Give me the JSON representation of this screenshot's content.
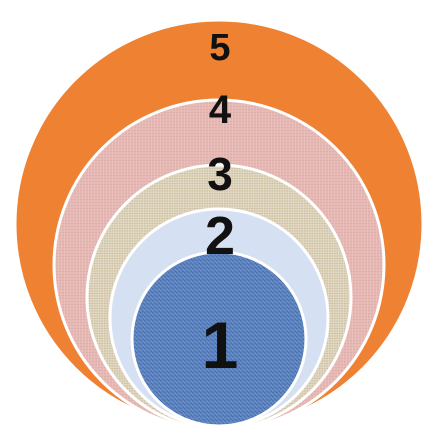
{
  "diagram": {
    "rings": [
      {
        "label": "5",
        "color": "#ef8133",
        "texture": "solid"
      },
      {
        "label": "4",
        "color": "#e6b8b4",
        "texture": "linen"
      },
      {
        "label": "3",
        "color": "#ddd3bd",
        "texture": "burlap"
      },
      {
        "label": "2",
        "color": "#d5e0f2",
        "texture": "solid"
      },
      {
        "label": "1",
        "color": "#5f86c2",
        "texture": "denim"
      }
    ],
    "outline_color": "#ffffff"
  }
}
